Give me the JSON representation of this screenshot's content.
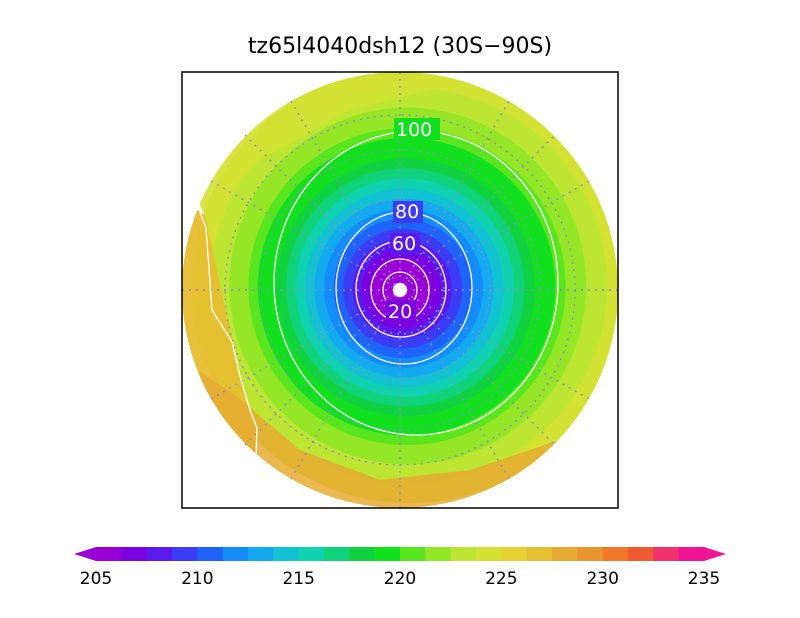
{
  "title": "tz65l4040dsh12 (30S−90S)",
  "contour_labels": [
    "100",
    "80",
    "60",
    "20"
  ],
  "colorbar": {
    "ticks": [
      "205",
      "210",
      "215",
      "220",
      "225",
      "230",
      "235"
    ],
    "colors": [
      "#9a00d6",
      "#7a00e0",
      "#5a1aee",
      "#3c3cf5",
      "#1e64fa",
      "#148cfa",
      "#14aaf0",
      "#10c2d2",
      "#10d2b0",
      "#10d27a",
      "#10d240",
      "#12e01e",
      "#5ae61e",
      "#96e628",
      "#bce632",
      "#d2e132",
      "#e6d232",
      "#e6be32",
      "#e6aa32",
      "#e6962d",
      "#f07828",
      "#f05a32",
      "#f0326e",
      "#f01496"
    ]
  },
  "map": {
    "field_min": 205,
    "field_max": 235,
    "projection": "south-polar-stereographic",
    "latitude_range": "30S−90S"
  }
}
